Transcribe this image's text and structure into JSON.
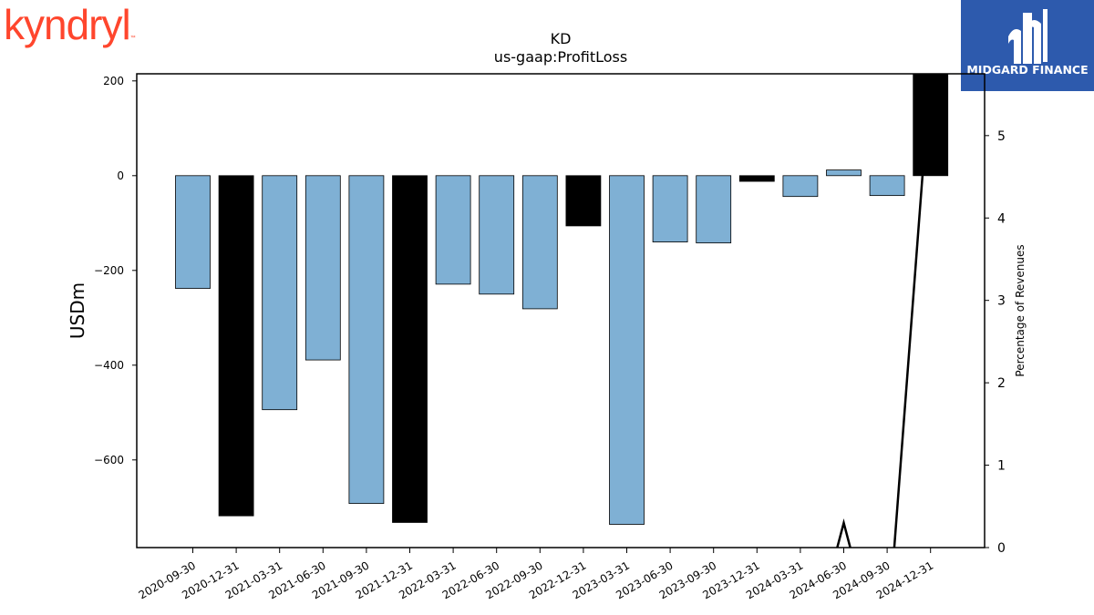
{
  "brand": {
    "left_logo": "kyndryl",
    "right_logo": "MIDGARD FINANCE",
    "left_color": "#ff462d",
    "right_bg": "#2d5aad"
  },
  "chart_data": {
    "type": "bar",
    "title": "KD",
    "subtitle": "us-gaap:ProfitLoss",
    "ylabel": "USDm",
    "y2label": "Percentage of Revenues",
    "ylim": [
      -785,
      215
    ],
    "y2lim": [
      0,
      5.75
    ],
    "yticks": [
      200,
      0,
      -200,
      -400,
      -600
    ],
    "y2ticks": [
      0,
      1,
      2,
      3,
      4,
      5
    ],
    "categories": [
      "2020-09-30",
      "2020-12-31",
      "2021-03-31",
      "2021-06-30",
      "2021-09-30",
      "2021-12-31",
      "2022-03-31",
      "2022-06-30",
      "2022-09-30",
      "2022-12-31",
      "2023-03-31",
      "2023-06-30",
      "2023-09-30",
      "2023-12-31",
      "2024-03-31",
      "2024-06-30",
      "2024-09-30",
      "2024-12-31"
    ],
    "values": [
      -238,
      -718,
      -494,
      -389,
      -692,
      -732,
      -229,
      -250,
      -281,
      -106,
      -736,
      -140,
      -142,
      -12,
      -44,
      12,
      -42,
      215
    ],
    "bar_colors": [
      "#7fb0d4",
      "#000000",
      "#7fb0d4",
      "#7fb0d4",
      "#7fb0d4",
      "#000000",
      "#7fb0d4",
      "#7fb0d4",
      "#7fb0d4",
      "#000000",
      "#7fb0d4",
      "#7fb0d4",
      "#7fb0d4",
      "#000000",
      "#7fb0d4",
      "#7fb0d4",
      "#7fb0d4",
      "#000000"
    ],
    "line_series": {
      "axis": "secondary",
      "x_categories": [
        "2024-06-30",
        "2024-12-31"
      ],
      "points": [
        {
          "category_index": 14.8,
          "value": -0.1
        },
        {
          "category_index": 15.0,
          "value": 0.3
        },
        {
          "category_index": 15.2,
          "value": -0.1
        },
        {
          "category_index": 16.15,
          "value": -0.1
        },
        {
          "category_index": 17.0,
          "value": 5.8
        }
      ]
    },
    "grid": false
  }
}
